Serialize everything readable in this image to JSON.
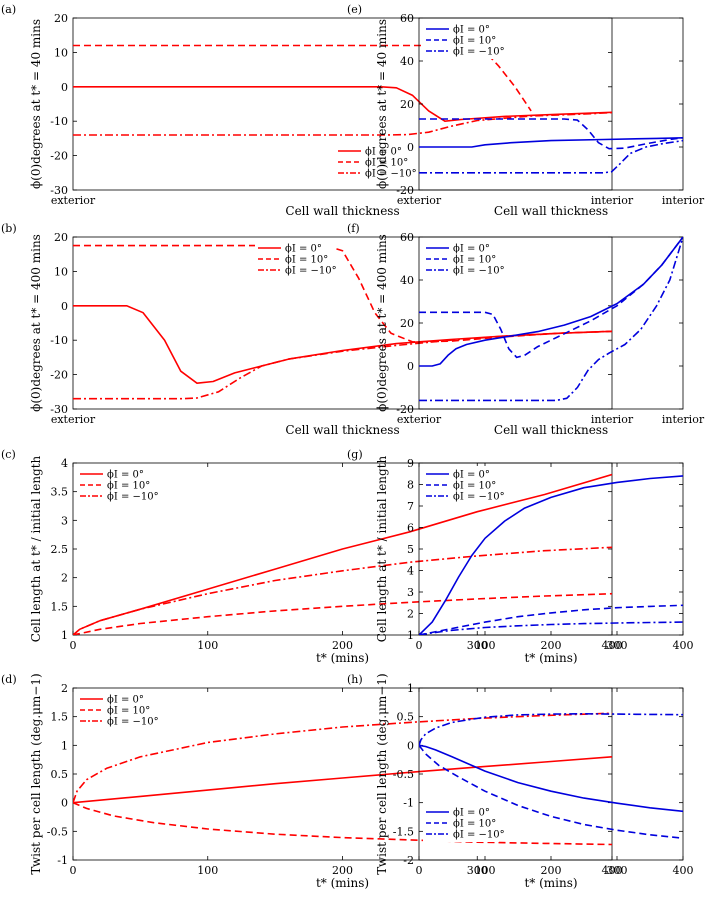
{
  "chart_data": [
    {
      "id": "a",
      "panel_label": "(a)",
      "type": "line",
      "color": "#ff0000",
      "ylabel": "ϕ(0)degrees at t* = 40 mins",
      "xlabel": "Cell wall thickness",
      "xlabel_left": "exterior",
      "xlabel_right": "interior",
      "xlim": [
        0,
        1
      ],
      "ylim": [
        -30,
        20
      ],
      "yticks": [
        20,
        10,
        0,
        -10,
        -20,
        -30
      ],
      "ytick_labels": [
        "20",
        "10",
        "0",
        "-10",
        "-20",
        "-30"
      ],
      "legend_position": "lower-right",
      "series": [
        {
          "name": "ϕI = 0°",
          "style": "solid",
          "x": [
            0,
            0.57,
            0.6,
            0.63,
            0.66,
            0.69,
            0.72,
            0.8,
            0.9,
            1
          ],
          "y": [
            0,
            0,
            -0.3,
            -2.5,
            -7,
            -10,
            -9.5,
            -8.6,
            -8,
            -7.4
          ]
        },
        {
          "name": "ϕI = 10°",
          "style": "dashed",
          "x": [
            0,
            0.73,
            0.76,
            0.79,
            0.82,
            0.85
          ],
          "y": [
            12,
            12,
            11,
            6,
            0,
            -7
          ]
        },
        {
          "name": "ϕI = −10°",
          "style": "dashdot",
          "x": [
            0,
            0.58,
            0.62,
            0.66,
            0.7,
            0.75,
            0.85,
            0.95,
            1
          ],
          "y": [
            -14,
            -14,
            -13.9,
            -13.2,
            -11.5,
            -9.8,
            -8.5,
            -7.9,
            -7.5
          ]
        }
      ]
    },
    {
      "id": "e",
      "panel_label": "(e)",
      "type": "line",
      "color": "#0000dd",
      "ylabel": "ϕ(0)degrees at t* = 40 mins",
      "xlabel": "Cell wall thickness",
      "xlabel_left": "exterior",
      "xlabel_right": "interior",
      "xlim": [
        0,
        1
      ],
      "ylim": [
        -20,
        60
      ],
      "yticks": [
        60,
        40,
        20,
        0,
        -20
      ],
      "ytick_labels": [
        "60",
        "40",
        "20",
        "0",
        "-20"
      ],
      "legend_position": "top-left",
      "series": [
        {
          "name": "ϕI = 0°",
          "style": "solid",
          "x": [
            0,
            0.2,
            0.25,
            0.35,
            0.5,
            0.7,
            0.9,
            1
          ],
          "y": [
            0,
            0,
            1,
            2,
            3,
            3.5,
            4,
            4.3
          ]
        },
        {
          "name": "ϕI = 10°",
          "style": "dashed",
          "x": [
            0,
            0.55,
            0.6,
            0.64,
            0.68,
            0.72,
            0.78,
            0.86,
            0.95,
            1
          ],
          "y": [
            13,
            13,
            12.5,
            8,
            2,
            -0.8,
            -0.5,
            1.5,
            3.5,
            4.3
          ]
        },
        {
          "name": "ϕI = −10°",
          "style": "dashdot",
          "x": [
            0,
            0.7,
            0.73,
            0.76,
            0.8,
            0.86,
            0.92,
            1
          ],
          "y": [
            -12,
            -12,
            -11.5,
            -8,
            -3,
            0,
            1.5,
            3
          ]
        }
      ]
    },
    {
      "id": "b",
      "panel_label": "(b)",
      "type": "line",
      "color": "#ff0000",
      "ylabel": "ϕ(0)degrees at t* = 400 mins",
      "xlabel": "Cell wall thickness",
      "xlabel_left": "exterior",
      "xlabel_right": "interior",
      "xlim": [
        0,
        1
      ],
      "ylim": [
        -30,
        20
      ],
      "yticks": [
        20,
        10,
        0,
        -10,
        -20,
        -30
      ],
      "ytick_labels": [
        "20",
        "10",
        "0",
        "-10",
        "-20",
        "-30"
      ],
      "legend_position": "top-right",
      "series": [
        {
          "name": "ϕI = 0°",
          "style": "solid",
          "x": [
            0,
            0.1,
            0.13,
            0.17,
            0.2,
            0.23,
            0.26,
            0.3,
            0.4,
            0.5,
            0.6,
            0.7,
            0.8,
            0.9,
            1
          ],
          "y": [
            0,
            0,
            -2,
            -10,
            -19,
            -22.5,
            -22,
            -19.5,
            -15.5,
            -13,
            -11,
            -9.8,
            -8.8,
            -8,
            -7.4
          ]
        },
        {
          "name": "ϕI = 10°",
          "style": "dashed",
          "x": [
            0,
            0.47,
            0.5,
            0.53,
            0.56,
            0.59,
            0.63,
            0.7,
            0.8,
            0.9,
            1
          ],
          "y": [
            17.5,
            17.5,
            16,
            8,
            -2,
            -8,
            -10.5,
            -10.3,
            -9,
            -8,
            -7.4
          ]
        },
        {
          "name": "ϕI = −10°",
          "style": "dashdot",
          "x": [
            0,
            0.2,
            0.23,
            0.27,
            0.31,
            0.35,
            0.4,
            0.5,
            0.6,
            0.7,
            0.8,
            0.9,
            1
          ],
          "y": [
            -27,
            -27,
            -26.8,
            -25,
            -21,
            -17.5,
            -15.5,
            -13.2,
            -11.5,
            -10,
            -8.8,
            -8,
            -7.4
          ]
        }
      ]
    },
    {
      "id": "f",
      "panel_label": "(f)",
      "type": "line",
      "color": "#0000dd",
      "ylabel": "ϕ(0)degrees at t* = 400 mins",
      "xlabel": "Cell wall thickness",
      "xlabel_left": "exterior",
      "xlabel_right": "interior",
      "xlim": [
        0,
        1
      ],
      "ylim": [
        -20,
        60
      ],
      "yticks": [
        60,
        40,
        20,
        0,
        -20
      ],
      "ytick_labels": [
        "60",
        "40",
        "20",
        "0",
        "-20"
      ],
      "legend_position": "top-left",
      "series": [
        {
          "name": "ϕI = 0°",
          "style": "solid",
          "x": [
            0,
            0.05,
            0.08,
            0.11,
            0.14,
            0.18,
            0.25,
            0.35,
            0.45,
            0.55,
            0.65,
            0.75,
            0.85,
            0.92,
            1
          ],
          "y": [
            0,
            0,
            1,
            5,
            8,
            10,
            12,
            14,
            16,
            19,
            23,
            29,
            38,
            47,
            60
          ]
        },
        {
          "name": "ϕI = 10°",
          "style": "dashed",
          "x": [
            0,
            0.25,
            0.28,
            0.31,
            0.34,
            0.37,
            0.4,
            0.45,
            0.55,
            0.65,
            0.75,
            0.85,
            0.92,
            1
          ],
          "y": [
            25,
            25,
            24,
            17,
            8,
            4,
            5,
            9,
            15,
            21,
            28,
            38,
            47,
            60
          ]
        },
        {
          "name": "ϕI = −10°",
          "style": "dashdot",
          "x": [
            0,
            0.52,
            0.56,
            0.6,
            0.64,
            0.68,
            0.72,
            0.78,
            0.84,
            0.9,
            0.95,
            1
          ],
          "y": [
            -16,
            -16,
            -15,
            -10,
            -2,
            3,
            6,
            10,
            17,
            28,
            40,
            60
          ]
        }
      ]
    },
    {
      "id": "c",
      "panel_label": "(c)",
      "type": "line",
      "color": "#ff0000",
      "ylabel": "Cell length at t* / initial length",
      "xlabel": "t* (mins)",
      "xlim": [
        0,
        400
      ],
      "ylim": [
        1,
        4
      ],
      "xticks": [
        0,
        100,
        200,
        300,
        400
      ],
      "yticks": [
        1,
        1.5,
        2,
        2.5,
        3,
        3.5,
        4
      ],
      "ytick_labels": [
        "1",
        "1.5",
        "2",
        "2.5",
        "3",
        "3.5",
        "4"
      ],
      "legend_position": "top-left",
      "series": [
        {
          "name": "ϕI = 0°",
          "style": "solid",
          "x": [
            0,
            5,
            20,
            50,
            100,
            150,
            200,
            250,
            300,
            350,
            400
          ],
          "y": [
            1,
            1.1,
            1.25,
            1.45,
            1.8,
            2.15,
            2.5,
            2.8,
            3.15,
            3.45,
            3.8
          ]
        },
        {
          "name": "ϕI = 10°",
          "style": "dashed",
          "x": [
            0,
            20,
            50,
            100,
            150,
            200,
            250,
            300,
            350,
            400
          ],
          "y": [
            1,
            1.1,
            1.2,
            1.32,
            1.42,
            1.5,
            1.57,
            1.63,
            1.68,
            1.72
          ]
        },
        {
          "name": "ϕI = −10°",
          "style": "dashdot",
          "x": [
            0,
            5,
            20,
            50,
            100,
            150,
            200,
            250,
            300,
            350,
            400
          ],
          "y": [
            1,
            1.1,
            1.25,
            1.45,
            1.72,
            1.95,
            2.12,
            2.27,
            2.38,
            2.47,
            2.53
          ]
        }
      ]
    },
    {
      "id": "g",
      "panel_label": "(g)",
      "type": "line",
      "color": "#0000dd",
      "ylabel": "Cell length at t* / initial length",
      "xlabel": "t* (mins)",
      "xlim": [
        0,
        400
      ],
      "ylim": [
        1,
        9
      ],
      "xticks": [
        0,
        100,
        200,
        300,
        400
      ],
      "yticks": [
        1,
        2,
        3,
        4,
        5,
        6,
        7,
        8,
        9
      ],
      "ytick_labels": [
        "1",
        "2",
        "3",
        "4",
        "5",
        "6",
        "7",
        "8",
        "9"
      ],
      "legend_position": "top-left",
      "series": [
        {
          "name": "ϕI = 0°",
          "style": "solid",
          "x": [
            0,
            20,
            40,
            60,
            80,
            100,
            130,
            160,
            200,
            250,
            300,
            350,
            400
          ],
          "y": [
            1,
            1.6,
            2.6,
            3.7,
            4.7,
            5.5,
            6.3,
            6.9,
            7.4,
            7.85,
            8.1,
            8.28,
            8.4
          ]
        },
        {
          "name": "ϕI = 10°",
          "style": "dashed",
          "x": [
            0,
            50,
            100,
            150,
            200,
            250,
            300,
            350,
            400
          ],
          "y": [
            1,
            1.3,
            1.6,
            1.85,
            2.03,
            2.17,
            2.27,
            2.33,
            2.38
          ]
        },
        {
          "name": "ϕI = −10°",
          "style": "dashdot",
          "x": [
            0,
            20,
            50,
            100,
            150,
            200,
            250,
            300,
            350,
            400
          ],
          "y": [
            1,
            1.1,
            1.22,
            1.35,
            1.43,
            1.49,
            1.53,
            1.56,
            1.58,
            1.6
          ]
        }
      ]
    },
    {
      "id": "d",
      "panel_label": "(d)",
      "type": "line",
      "color": "#ff0000",
      "ylabel": "Twist per cell length (deg.μm−1)",
      "xlabel": "t* (mins)",
      "xlim": [
        0,
        400
      ],
      "ylim": [
        -1,
        2
      ],
      "xticks": [
        0,
        100,
        200,
        300,
        400
      ],
      "yticks": [
        2,
        1.5,
        1,
        0.5,
        0,
        -0.5,
        -1
      ],
      "ytick_labels": [
        "2",
        "1.5",
        "1",
        "0.5",
        "0",
        "-0.5",
        "-1"
      ],
      "legend_position": "top-left",
      "series": [
        {
          "name": "ϕI = 0°",
          "style": "solid",
          "x": [
            0,
            50,
            100,
            150,
            200,
            250,
            300,
            350,
            400
          ],
          "y": [
            0,
            0.11,
            0.22,
            0.33,
            0.43,
            0.53,
            0.62,
            0.71,
            0.8
          ]
        },
        {
          "name": "ϕI = 10°",
          "style": "dashed",
          "x": [
            0,
            10,
            30,
            60,
            100,
            150,
            200,
            250,
            300,
            350,
            400
          ],
          "y": [
            0,
            -0.1,
            -0.23,
            -0.35,
            -0.46,
            -0.55,
            -0.61,
            -0.65,
            -0.69,
            -0.71,
            -0.73
          ]
        },
        {
          "name": "ϕI = −10°",
          "style": "dashdot",
          "x": [
            0,
            3,
            10,
            25,
            50,
            100,
            150,
            200,
            250,
            300,
            350,
            400
          ],
          "y": [
            0,
            0.2,
            0.4,
            0.6,
            0.8,
            1.05,
            1.2,
            1.32,
            1.4,
            1.47,
            1.52,
            1.56
          ]
        }
      ]
    },
    {
      "id": "h",
      "panel_label": "(h)",
      "type": "line",
      "color": "#0000dd",
      "ylabel": "Twist per cell length (deg.μm−1)",
      "xlabel": "t* (mins)",
      "xlim": [
        0,
        400
      ],
      "ylim": [
        -2,
        1
      ],
      "xticks": [
        0,
        100,
        200,
        300,
        400
      ],
      "yticks": [
        1,
        0.5,
        0,
        -0.5,
        -1,
        -1.5,
        -2
      ],
      "ytick_labels": [
        "1",
        "0.5",
        "0",
        "-0.5",
        "-1",
        "-1.5",
        "-2"
      ],
      "legend_position": "bottom-left",
      "series": [
        {
          "name": "ϕI = 0°",
          "style": "solid",
          "x": [
            0,
            10,
            25,
            50,
            100,
            150,
            200,
            250,
            300,
            350,
            400
          ],
          "y": [
            0,
            -0.02,
            -0.08,
            -0.2,
            -0.45,
            -0.65,
            -0.8,
            -0.92,
            -1.01,
            -1.09,
            -1.15
          ]
        },
        {
          "name": "ϕI = 10°",
          "style": "dashed",
          "x": [
            0,
            10,
            30,
            60,
            100,
            150,
            200,
            250,
            300,
            350,
            400
          ],
          "y": [
            0,
            -0.15,
            -0.35,
            -0.55,
            -0.8,
            -1.05,
            -1.24,
            -1.38,
            -1.48,
            -1.56,
            -1.62
          ]
        },
        {
          "name": "ϕI = −10°",
          "style": "dashdot",
          "x": [
            0,
            3,
            10,
            25,
            50,
            100,
            150,
            200,
            250,
            300,
            350,
            400
          ],
          "y": [
            0,
            0.1,
            0.2,
            0.3,
            0.4,
            0.49,
            0.53,
            0.545,
            0.55,
            0.545,
            0.54,
            0.535
          ]
        }
      ]
    }
  ]
}
